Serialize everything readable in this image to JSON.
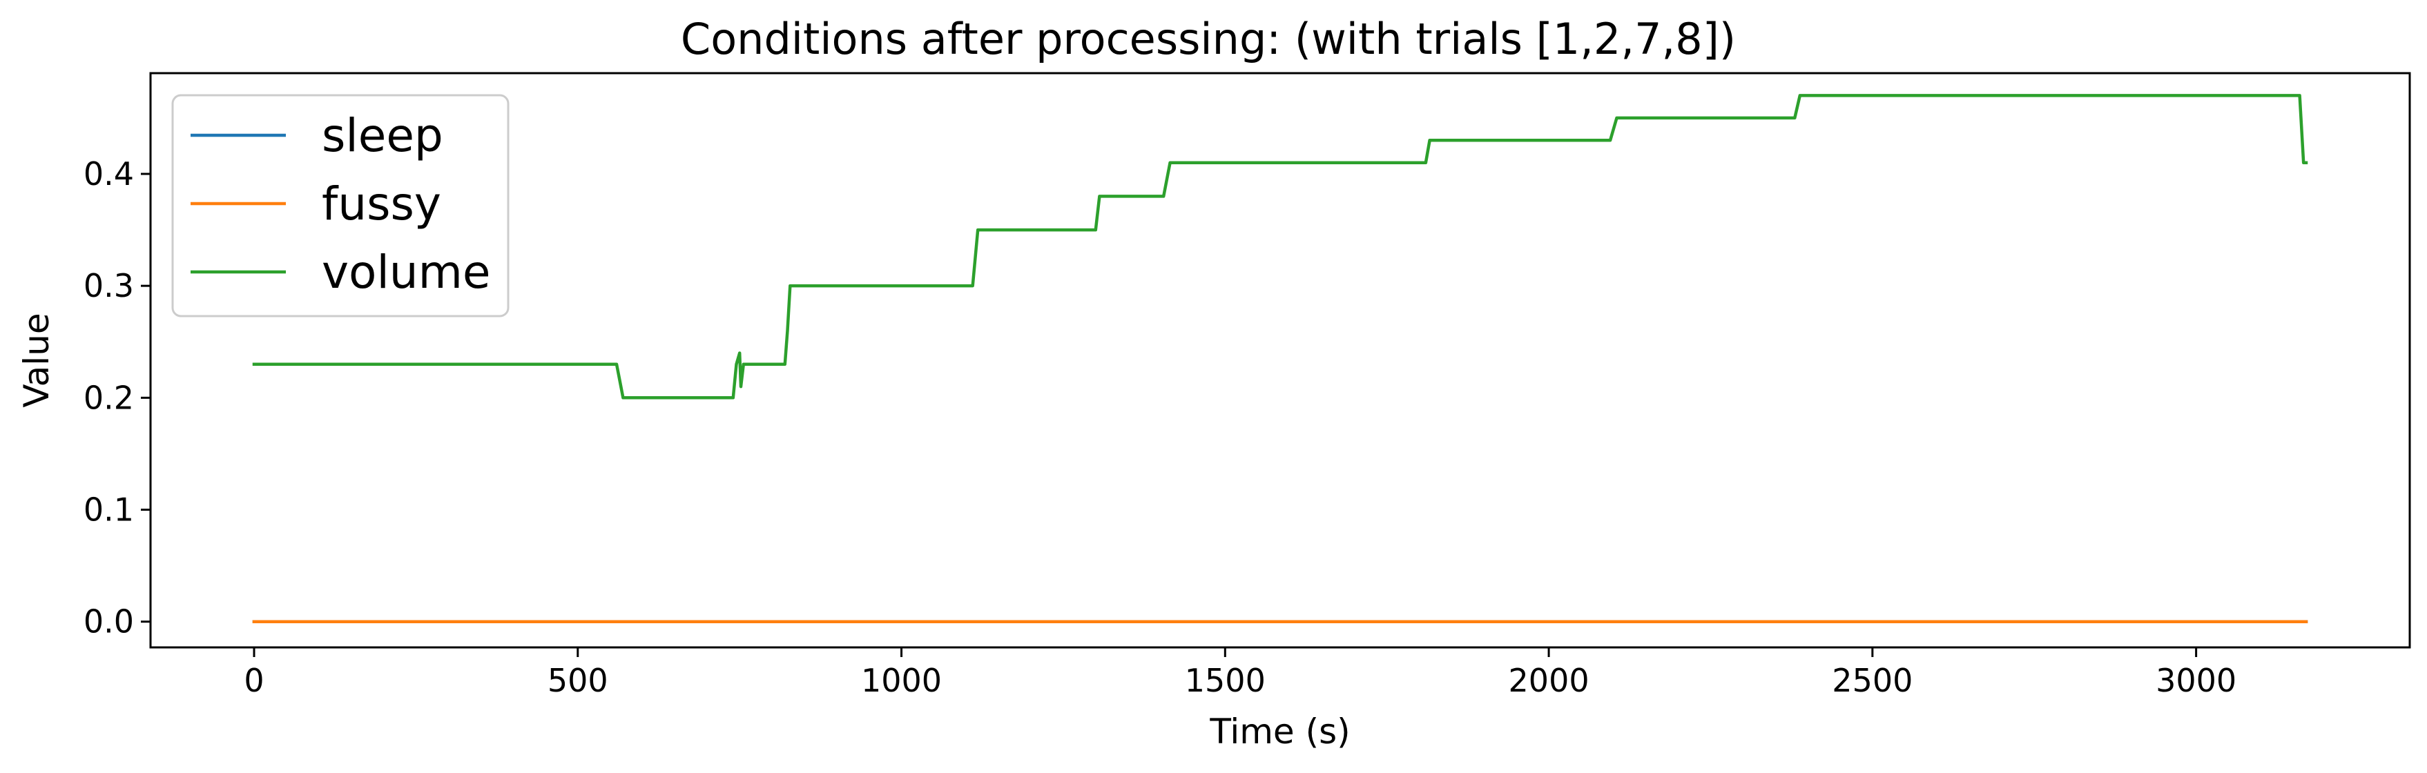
{
  "chart_data": {
    "type": "line",
    "title": "Conditions after processing: (with trials [1,2,7,8])",
    "xlabel": "Time (s)",
    "ylabel": "Value",
    "xlim": [
      -160,
      3330
    ],
    "ylim": [
      -0.023,
      0.49
    ],
    "xticks": [
      0,
      500,
      1000,
      1500,
      2000,
      2500,
      3000
    ],
    "xtick_labels": [
      "0",
      "500",
      "1000",
      "1500",
      "2000",
      "2500",
      "3000"
    ],
    "yticks": [
      0.0,
      0.1,
      0.2,
      0.3,
      0.4
    ],
    "ytick_labels": [
      "0.0",
      "0.1",
      "0.2",
      "0.3",
      "0.4"
    ],
    "grid": false,
    "legend_position": "upper-left",
    "series": [
      {
        "name": "sleep",
        "color": "#1f77b4",
        "x": [
          0,
          3170
        ],
        "y": [
          0,
          0
        ]
      },
      {
        "name": "fussy",
        "color": "#ff7f0e",
        "x": [
          0,
          3170
        ],
        "y": [
          0,
          0
        ]
      },
      {
        "name": "volume",
        "color": "#2ca02c",
        "x": [
          0,
          560,
          570,
          740,
          745,
          750,
          752,
          756,
          758,
          820,
          824,
          828,
          1110,
          1118,
          1300,
          1306,
          1405,
          1415,
          1810,
          1816,
          2095,
          2105,
          2380,
          2388,
          3160,
          3166,
          3170
        ],
        "y": [
          0.23,
          0.23,
          0.2,
          0.2,
          0.23,
          0.24,
          0.21,
          0.23,
          0.23,
          0.23,
          0.26,
          0.3,
          0.3,
          0.35,
          0.35,
          0.38,
          0.38,
          0.41,
          0.41,
          0.43,
          0.43,
          0.45,
          0.45,
          0.47,
          0.47,
          0.41,
          0.41
        ]
      }
    ]
  }
}
